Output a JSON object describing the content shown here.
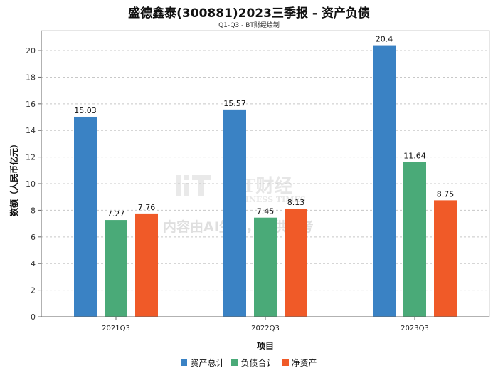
{
  "title": "盛德鑫泰(300881)2023三季报 - 资产负债",
  "subtitle": "Q1-Q3 - BT财经绘制",
  "watermark": {
    "logo": "BT财经",
    "logo_en": "BUSINESS TIMES",
    "notice": "内容由AI生成，仅供参考"
  },
  "colors": {
    "total_assets": "#3a82c4",
    "total_liabilities": "#4aaa78",
    "net_assets": "#f05a28"
  },
  "chart_data": {
    "type": "bar",
    "title": "盛德鑫泰(300881)2023三季报 - 资产负债",
    "subtitle": "Q1-Q3 - BT财经绘制",
    "xlabel": "项目",
    "ylabel": "数额（人民币亿元）",
    "categories": [
      "2021Q3",
      "2022Q3",
      "2023Q3"
    ],
    "ylim": [
      0,
      21.5
    ],
    "yticks": [
      0,
      2,
      4,
      6,
      8,
      10,
      12,
      14,
      16,
      18,
      20
    ],
    "grid": true,
    "legend_position": "bottom",
    "series": [
      {
        "name": "资产总计",
        "color": "#3a82c4",
        "values": [
          15.03,
          15.57,
          20.4
        ]
      },
      {
        "name": "负债合计",
        "color": "#4aaa78",
        "values": [
          7.27,
          7.45,
          11.64
        ]
      },
      {
        "name": "净资产",
        "color": "#f05a28",
        "values": [
          7.76,
          8.13,
          8.75
        ]
      }
    ]
  }
}
